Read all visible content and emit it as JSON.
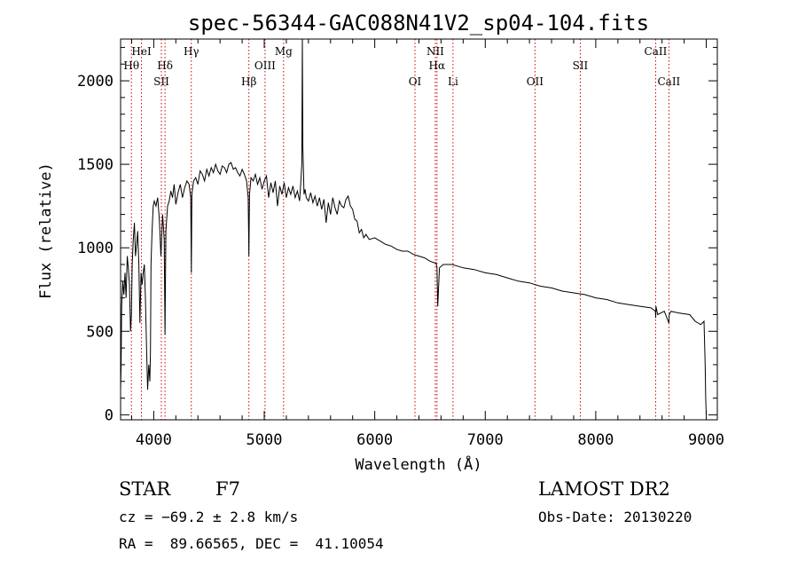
{
  "chart_data": {
    "type": "line",
    "title": "spec-56344-GAC088N41V2_sp04-104.fits",
    "xlabel": "Wavelength (Å)",
    "ylabel": "Flux (relative)",
    "xlim": [
      3700,
      9100
    ],
    "ylim": [
      -30,
      2250
    ],
    "xticks": [
      4000,
      5000,
      6000,
      7000,
      8000,
      9000
    ],
    "yticks": [
      0,
      500,
      1000,
      1500,
      2000
    ],
    "grid": false,
    "line_color": "#000000",
    "marker_color": "#cc0000",
    "spectral_lines": [
      {
        "name": "Hθ",
        "x": 3798,
        "row": 2
      },
      {
        "name": "HeI",
        "x": 3889,
        "row": 1
      },
      {
        "name": "SII",
        "x": 4069,
        "row": 3
      },
      {
        "name": "Hδ",
        "x": 4102,
        "row": 2
      },
      {
        "name": "Hγ",
        "x": 4340,
        "row": 1
      },
      {
        "name": "Hβ",
        "x": 4861,
        "row": 3
      },
      {
        "name": "OIII",
        "x": 5007,
        "row": 2
      },
      {
        "name": "Mg",
        "x": 5175,
        "row": 1
      },
      {
        "name": "OI",
        "x": 6364,
        "row": 3
      },
      {
        "name": "NII",
        "x": 6548,
        "row": 1
      },
      {
        "name": "Hα",
        "x": 6563,
        "row": 2
      },
      {
        "name": "Li",
        "x": 6708,
        "row": 3
      },
      {
        "name": "OII",
        "x": 7450,
        "row": 3
      },
      {
        "name": "SII",
        "x": 7860,
        "row": 2
      },
      {
        "name": "CaII",
        "x": 8542,
        "row": 1
      },
      {
        "name": "CaII",
        "x": 8662,
        "row": 3
      }
    ],
    "spectrum": {
      "x": [
        3700,
        3705,
        3710,
        3720,
        3730,
        3740,
        3750,
        3760,
        3770,
        3780,
        3790,
        3798,
        3805,
        3815,
        3825,
        3835,
        3845,
        3855,
        3865,
        3875,
        3885,
        3895,
        3905,
        3915,
        3925,
        3935,
        3945,
        3955,
        3965,
        3970,
        3975,
        3985,
        3995,
        4005,
        4020,
        4035,
        4050,
        4065,
        4080,
        4095,
        4102,
        4110,
        4125,
        4140,
        4155,
        4170,
        4185,
        4200,
        4220,
        4240,
        4260,
        4280,
        4300,
        4320,
        4335,
        4340,
        4345,
        4360,
        4380,
        4400,
        4420,
        4440,
        4460,
        4480,
        4500,
        4520,
        4540,
        4560,
        4580,
        4600,
        4620,
        4640,
        4660,
        4680,
        4700,
        4720,
        4740,
        4760,
        4780,
        4800,
        4820,
        4840,
        4855,
        4861,
        4867,
        4880,
        4900,
        4920,
        4940,
        4960,
        4980,
        5000,
        5020,
        5040,
        5060,
        5080,
        5100,
        5120,
        5140,
        5160,
        5180,
        5200,
        5220,
        5240,
        5260,
        5280,
        5300,
        5320,
        5330,
        5340,
        5345,
        5350,
        5355,
        5360,
        5370,
        5380,
        5400,
        5420,
        5440,
        5460,
        5480,
        5500,
        5520,
        5540,
        5560,
        5580,
        5600,
        5620,
        5640,
        5660,
        5680,
        5700,
        5720,
        5740,
        5760,
        5780,
        5800,
        5820,
        5840,
        5860,
        5880,
        5900,
        5920,
        5950,
        6000,
        6050,
        6100,
        6150,
        6200,
        6250,
        6300,
        6350,
        6400,
        6450,
        6500,
        6540,
        6555,
        6563,
        6570,
        6585,
        6620,
        6700,
        6800,
        6900,
        7000,
        7100,
        7200,
        7300,
        7400,
        7500,
        7600,
        7700,
        7800,
        7900,
        8000,
        8100,
        8200,
        8300,
        8400,
        8500,
        8540,
        8542,
        8545,
        8560,
        8620,
        8662,
        8665,
        8680,
        8750,
        8850,
        8900,
        8950,
        8980,
        8990,
        8995,
        9000
      ],
      "y": [
        150,
        300,
        650,
        800,
        720,
        850,
        700,
        950,
        880,
        780,
        500,
        600,
        900,
        1050,
        1150,
        950,
        1020,
        1100,
        900,
        550,
        850,
        780,
        850,
        900,
        700,
        400,
        150,
        300,
        200,
        380,
        900,
        1100,
        1250,
        1280,
        1250,
        1300,
        1180,
        950,
        1200,
        1050,
        480,
        1100,
        1250,
        1280,
        1340,
        1300,
        1380,
        1260,
        1330,
        1380,
        1300,
        1360,
        1400,
        1380,
        1300,
        850,
        1320,
        1400,
        1420,
        1380,
        1460,
        1440,
        1400,
        1470,
        1430,
        1480,
        1450,
        1500,
        1460,
        1440,
        1490,
        1480,
        1450,
        1500,
        1510,
        1470,
        1480,
        1450,
        1430,
        1470,
        1440,
        1400,
        1300,
        950,
        1320,
        1420,
        1400,
        1440,
        1380,
        1420,
        1350,
        1400,
        1430,
        1300,
        1390,
        1330,
        1400,
        1250,
        1370,
        1320,
        1390,
        1300,
        1360,
        1320,
        1370,
        1300,
        1340,
        1280,
        1380,
        1500,
        2260,
        1600,
        1450,
        1320,
        1350,
        1300,
        1280,
        1330,
        1270,
        1310,
        1250,
        1300,
        1230,
        1290,
        1150,
        1270,
        1200,
        1300,
        1240,
        1200,
        1280,
        1250,
        1240,
        1290,
        1310,
        1250,
        1230,
        1170,
        1160,
        1090,
        1110,
        1060,
        1080,
        1050,
        1060,
        1040,
        1020,
        1010,
        990,
        980,
        980,
        960,
        950,
        940,
        920,
        910,
        910,
        880,
        650,
        880,
        900,
        900,
        880,
        870,
        850,
        840,
        820,
        800,
        790,
        770,
        760,
        740,
        730,
        720,
        700,
        690,
        670,
        660,
        650,
        640,
        620,
        580,
        650,
        600,
        620,
        550,
        600,
        620,
        610,
        600,
        560,
        540,
        560,
        300,
        100,
        0
      ]
    }
  },
  "footer": {
    "object_class": "STAR",
    "subclass": "F7",
    "redshift": "cz = −69.2 ± 2.8 km/s",
    "coords": "RA =  89.66565, DEC =  41.10054",
    "survey": "LAMOST DR2",
    "obs_date": "Obs-Date: 20130220"
  }
}
